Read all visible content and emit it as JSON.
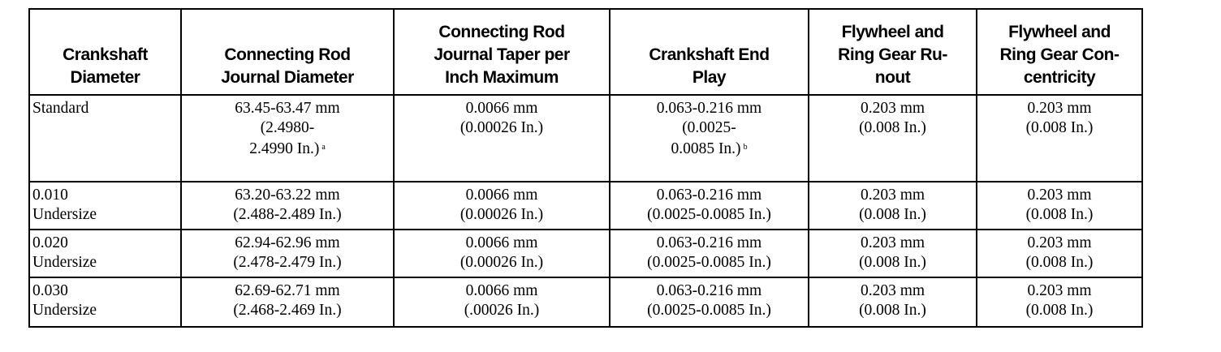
{
  "table": {
    "headers": [
      [
        "Crankshaft",
        "Diameter"
      ],
      [
        "Connecting Rod",
        "Journal Diameter"
      ],
      [
        "Connecting Rod",
        "Journal Taper per",
        "Inch Maximum"
      ],
      [
        "Crankshaft End",
        "Play"
      ],
      [
        "Flywheel and",
        "Ring Gear Ru-",
        "nout"
      ],
      [
        "Flywheel and",
        "Ring Gear Con-",
        "centricity"
      ]
    ],
    "rows": [
      {
        "size": [
          "Standard"
        ],
        "journal_diameter": [
          "63.45-63.47 mm",
          "(2.4980-",
          "2.4990 In.)"
        ],
        "journal_diameter_note": "a",
        "taper": [
          "0.0066 mm",
          "(0.00026 In.)"
        ],
        "end_play": [
          "0.063-0.216 mm",
          "(0.0025-",
          "0.0085 In.)"
        ],
        "end_play_note": "b",
        "runout": [
          "0.203 mm",
          "(0.008 In.)"
        ],
        "concentricity": [
          "0.203 mm",
          "(0.008 In.)"
        ]
      },
      {
        "size": [
          "0.010",
          "Undersize"
        ],
        "journal_diameter": [
          "63.20-63.22 mm",
          "(2.488-2.489 In.)"
        ],
        "taper": [
          "0.0066 mm",
          "(0.00026 In.)"
        ],
        "end_play": [
          "0.063-0.216 mm",
          "(0.0025-0.0085 In.)"
        ],
        "runout": [
          "0.203 mm",
          "(0.008 In.)"
        ],
        "concentricity": [
          "0.203 mm",
          "(0.008 In.)"
        ]
      },
      {
        "size": [
          "0.020",
          "Undersize"
        ],
        "journal_diameter": [
          "62.94-62.96 mm",
          "(2.478-2.479 In.)"
        ],
        "taper": [
          "0.0066 mm",
          "(0.00026 In.)"
        ],
        "end_play": [
          "0.063-0.216 mm",
          "(0.0025-0.0085 In.)"
        ],
        "runout": [
          "0.203 mm",
          "(0.008 In.)"
        ],
        "concentricity": [
          "0.203 mm",
          "(0.008 In.)"
        ]
      },
      {
        "size": [
          "0.030",
          "Undersize"
        ],
        "journal_diameter": [
          "62.69-62.71 mm",
          "(2.468-2.469 In.)"
        ],
        "taper": [
          "0.0066 mm",
          "(.00026 In.)"
        ],
        "end_play": [
          "0.063-0.216 mm",
          "(0.0025-0.0085 In.)"
        ],
        "runout": [
          "0.203 mm",
          "(0.008 In.)"
        ],
        "concentricity": [
          "0.203 mm",
          "(0.008 In.)"
        ]
      }
    ]
  }
}
